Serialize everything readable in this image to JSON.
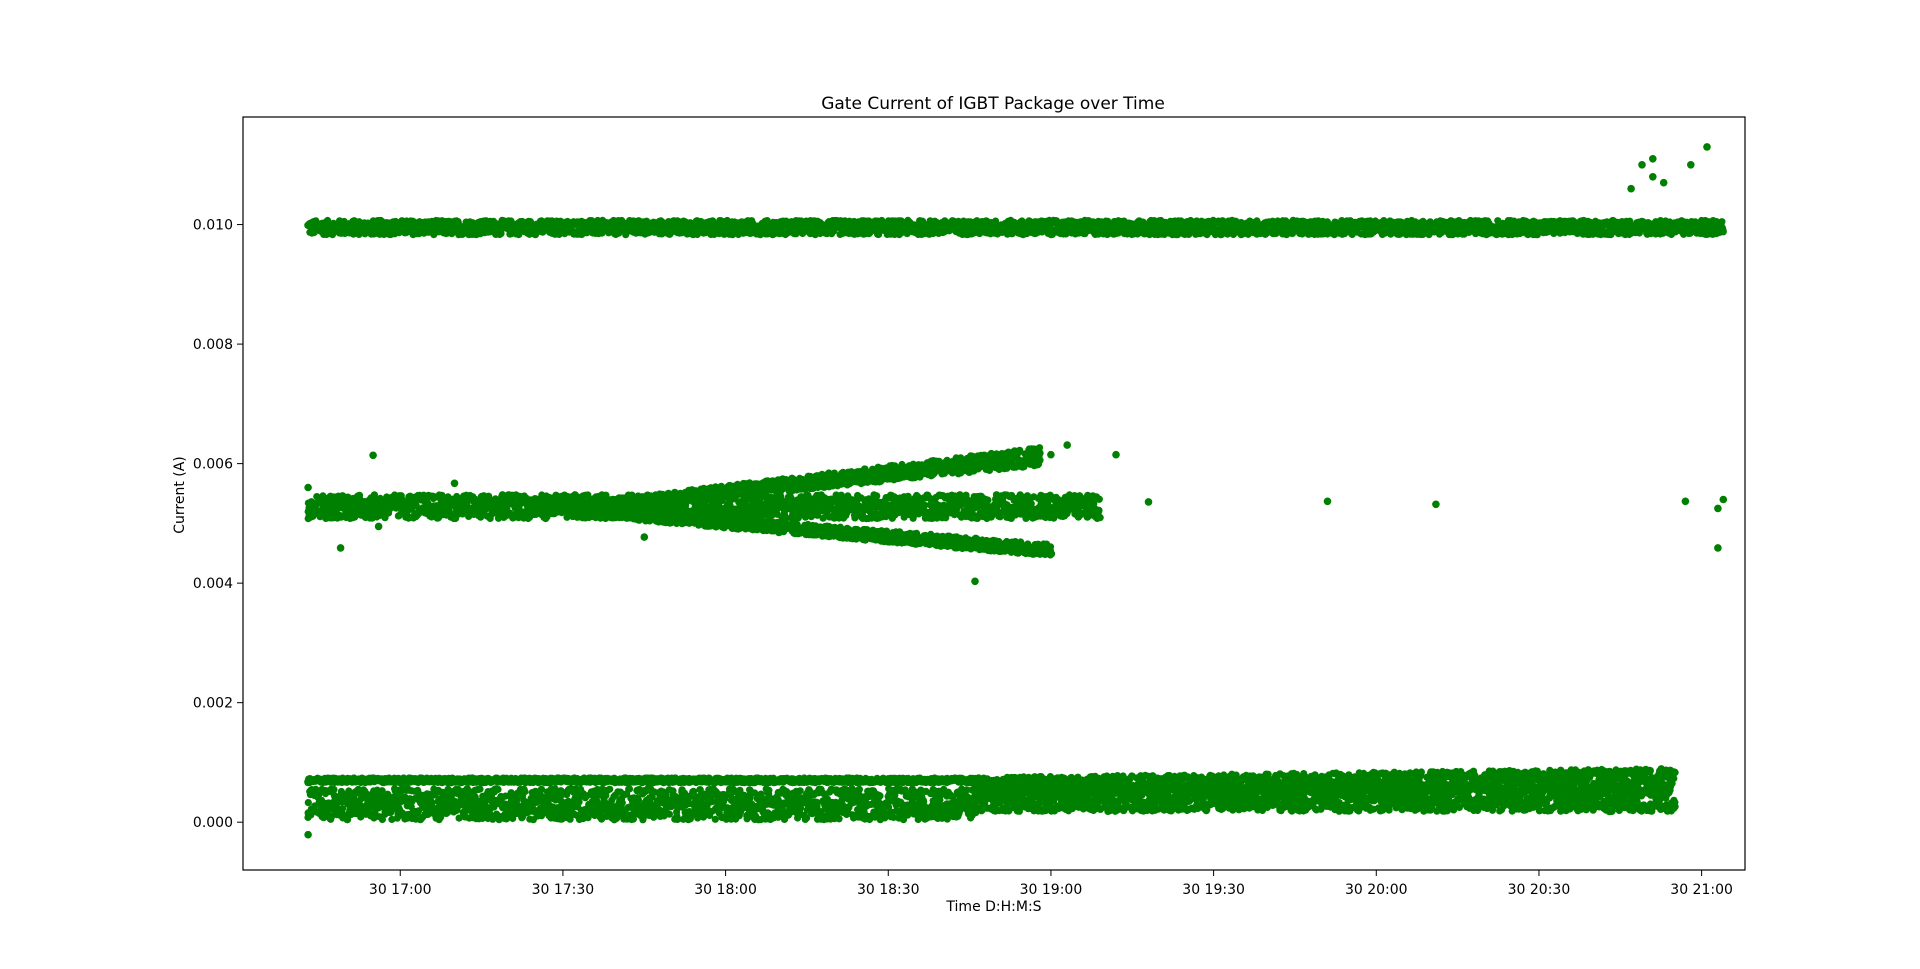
{
  "chart_data": {
    "type": "scatter",
    "title": "Gate Current of IGBT Package over Time",
    "xlabel": "Time D:H:M:S",
    "ylabel": "Current (A)",
    "x_unit": "time of day (day 30)",
    "xlim": [
      "30 16:31",
      "30 21:08"
    ],
    "ylim": [
      -0.0008,
      0.0118
    ],
    "x_ticks": [
      "30 17:00",
      "30 17:30",
      "30 18:00",
      "30 18:30",
      "30 19:00",
      "30 19:30",
      "30 20:00",
      "30 20:30",
      "30 21:00"
    ],
    "y_ticks": [
      "0.000",
      "0.002",
      "0.004",
      "0.006",
      "0.008",
      "0.010"
    ],
    "grid": false,
    "legend": "none",
    "marker_color": "#008000",
    "series": [
      {
        "bands": [
          {
            "start": "30 16:43",
            "end": "30 21:55",
            "y_start": 0.00995,
            "y_end": 0.00995,
            "spread_start": 0.00012,
            "spread_end": 0.00012
          },
          {
            "start": "30 16:43",
            "end": "30 19:09",
            "y_start": 0.00528,
            "y_end": 0.00528,
            "spread_start": 0.0002,
            "spread_end": 0.0002
          },
          {
            "start": "30 17:35",
            "end": "30 18:58",
            "y_start": 0.00528,
            "y_end": 0.00612,
            "spread_start": 8e-05,
            "spread_end": 0.00015
          },
          {
            "start": "30 17:35",
            "end": "30 19:00",
            "y_start": 0.0052,
            "y_end": 0.00455,
            "spread_start": 8e-05,
            "spread_end": 0.0001
          },
          {
            "start": "30 16:43",
            "end": "30 18:46",
            "y_start": 0.0007,
            "y_end": 0.0007,
            "spread_start": 4e-05,
            "spread_end": 4e-05
          },
          {
            "start": "30 16:43",
            "end": "30 18:46",
            "y_start": 0.0003,
            "y_end": 0.0003,
            "spread_start": 0.00026,
            "spread_end": 0.00026
          },
          {
            "start": "30 18:46",
            "end": "30 20:55",
            "y_start": 0.0006,
            "y_end": 0.0007,
            "spread_start": 0.00015,
            "spread_end": 0.0002
          },
          {
            "start": "30 18:46",
            "end": "30 20:55",
            "y_start": 0.0004,
            "y_end": 0.0004,
            "spread_start": 0.00022,
            "spread_end": 0.00022
          }
        ],
        "points": [
          {
            "x": "30 16:43",
            "y": -0.00021
          },
          {
            "x": "30 16:43",
            "y": 0.0056
          },
          {
            "x": "30 16:49",
            "y": 0.00459
          },
          {
            "x": "30 16:55",
            "y": 0.00614
          },
          {
            "x": "30 16:56",
            "y": 0.00495
          },
          {
            "x": "30 17:10",
            "y": 0.00567
          },
          {
            "x": "30 17:45",
            "y": 0.00477
          },
          {
            "x": "30 18:46",
            "y": 0.00403
          },
          {
            "x": "30 19:00",
            "y": 0.00615
          },
          {
            "x": "30 19:03",
            "y": 0.00631
          },
          {
            "x": "30 19:12",
            "y": 0.00615
          },
          {
            "x": "30 19:18",
            "y": 0.00536
          },
          {
            "x": "30 19:51",
            "y": 0.00537
          },
          {
            "x": "30 20:11",
            "y": 0.00532
          },
          {
            "x": "30 20:43",
            "y": 0.00018
          },
          {
            "x": "30 20:47",
            "y": 0.0106
          },
          {
            "x": "30 20:49",
            "y": 0.011
          },
          {
            "x": "30 20:51",
            "y": 0.0111
          },
          {
            "x": "30 20:51",
            "y": 0.0108
          },
          {
            "x": "30 20:53",
            "y": 0.0107
          },
          {
            "x": "30 20:57",
            "y": 0.00537
          },
          {
            "x": "30 20:58",
            "y": 0.011
          },
          {
            "x": "30 21:01",
            "y": 0.0113
          },
          {
            "x": "30 21:03",
            "y": 0.00459
          },
          {
            "x": "30 21:03",
            "y": 0.00525
          },
          {
            "x": "30 21:04",
            "y": 0.0054
          }
        ]
      }
    ]
  }
}
